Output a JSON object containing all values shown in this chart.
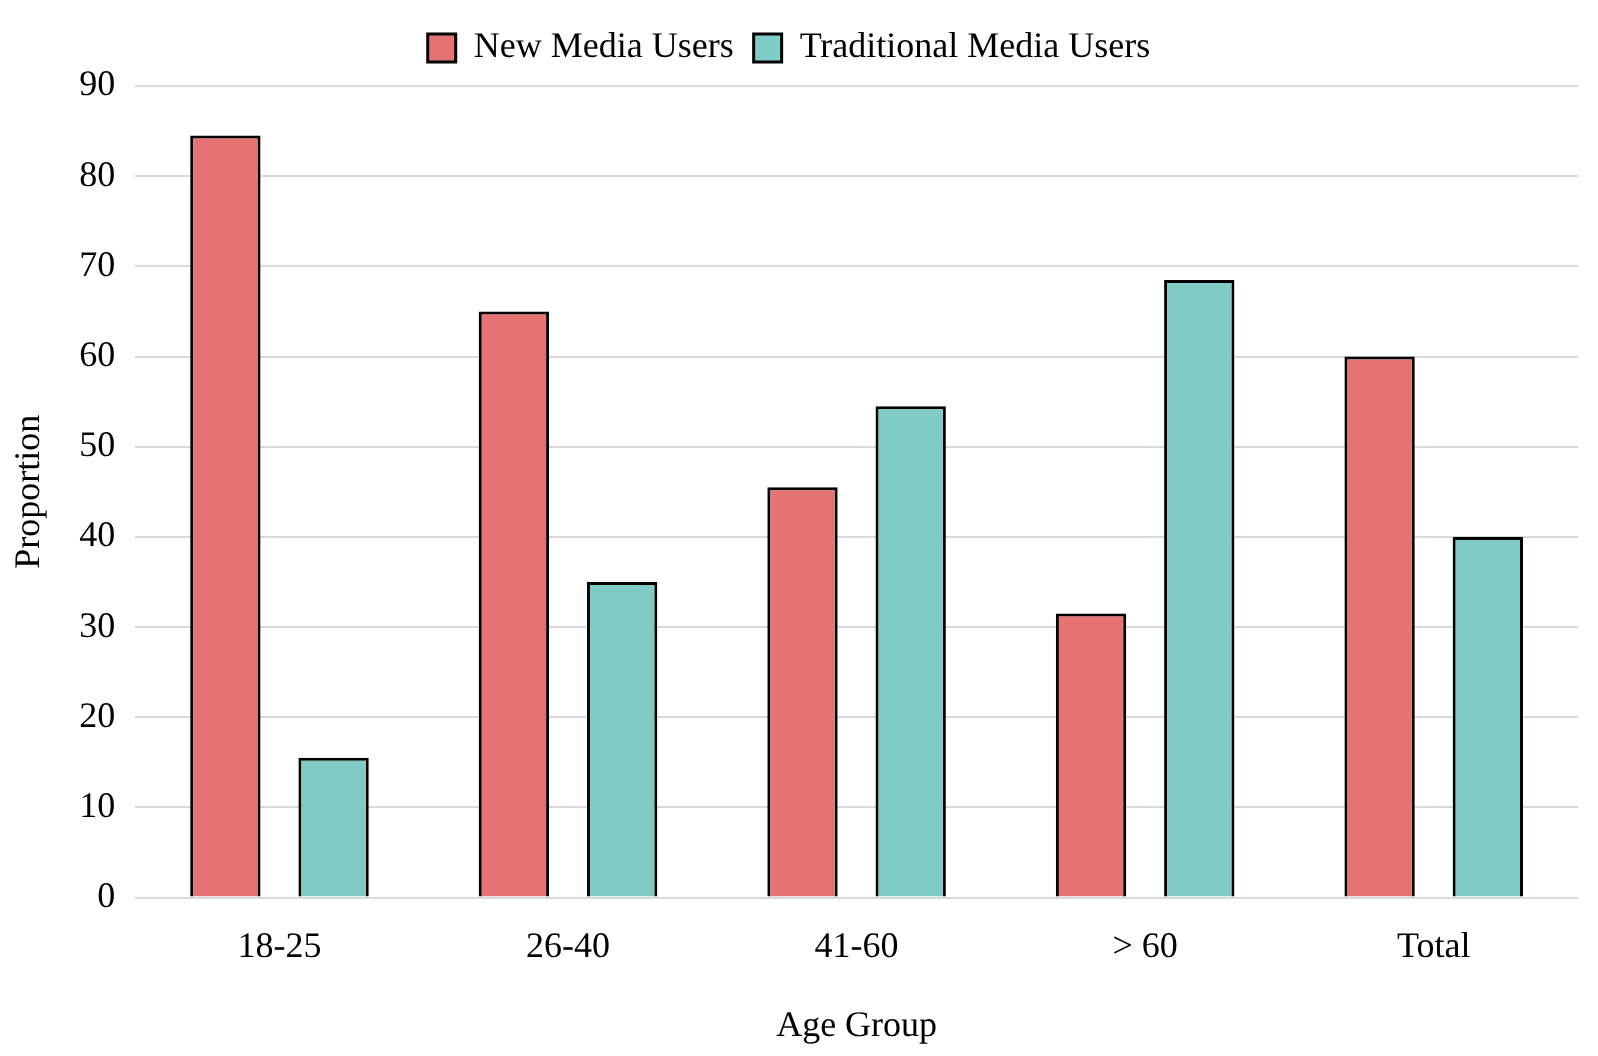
{
  "chart_data": {
    "type": "bar",
    "xlabel": "Age Group",
    "ylabel": "Proportion",
    "categories": [
      "18-25",
      "26-40",
      "41-60",
      "> 60",
      "Total"
    ],
    "series": [
      {
        "name": "New Media Users",
        "color": "#e57373",
        "values": [
          84.5,
          65,
          45.5,
          31.5,
          60
        ]
      },
      {
        "name": "Traditional Media Users",
        "color": "#80cbc4",
        "values": [
          15.5,
          35,
          54.5,
          68.5,
          40
        ]
      }
    ],
    "ylim": [
      0,
      90
    ],
    "yticks": [
      0,
      10,
      20,
      30,
      40,
      50,
      60,
      70,
      80,
      90
    ],
    "grid": "y",
    "legend": "top"
  }
}
